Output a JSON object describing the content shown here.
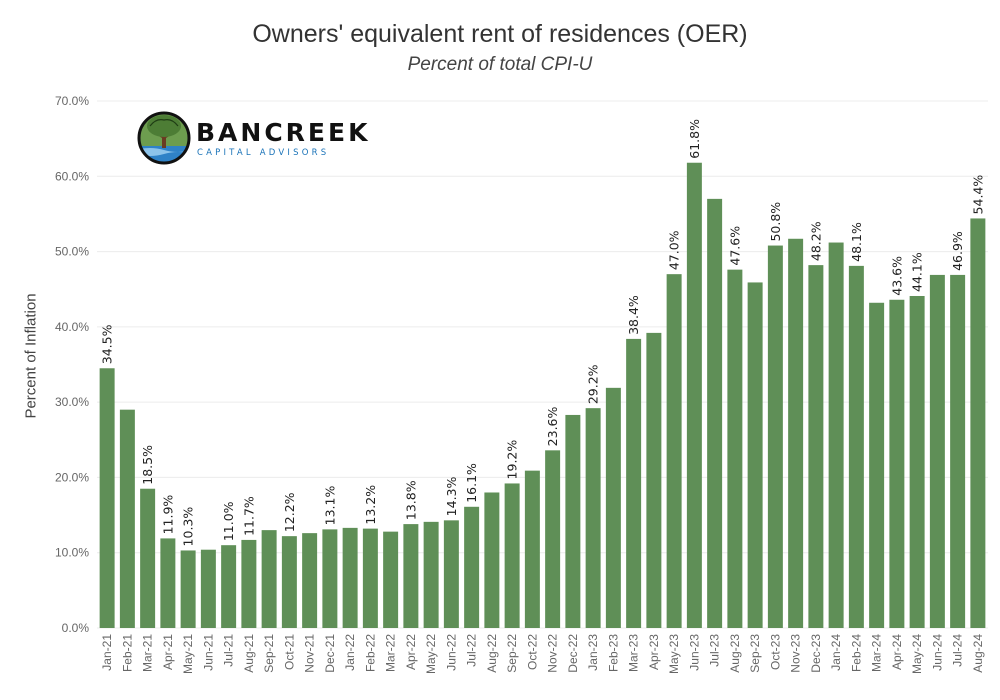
{
  "chart_data": {
    "type": "bar",
    "title": "Owners' equivalent rent of residences (OER)",
    "subtitle": "Percent of total CPI-U",
    "ylabel": "Percent of Inflation",
    "xlabel": "",
    "ylim": [
      0,
      70
    ],
    "yticks": [
      "0.0%",
      "10.0%",
      "20.0%",
      "30.0%",
      "40.0%",
      "50.0%",
      "60.0%",
      "70.0%"
    ],
    "grid": true,
    "bar_color": "#5f8f57",
    "categories": [
      "Jan-21",
      "Feb-21",
      "Mar-21",
      "Apr-21",
      "May-21",
      "Jun-21",
      "Jul-21",
      "Aug-21",
      "Sep-21",
      "Oct-21",
      "Nov-21",
      "Dec-21",
      "Jan-22",
      "Feb-22",
      "Mar-22",
      "Apr-22",
      "May-22",
      "Jun-22",
      "Jul-22",
      "Aug-22",
      "Sep-22",
      "Oct-22",
      "Nov-22",
      "Dec-22",
      "Jan-23",
      "Feb-23",
      "Mar-23",
      "Apr-23",
      "May-23",
      "Jun-23",
      "Jul-23",
      "Aug-23",
      "Sep-23",
      "Oct-23",
      "Nov-23",
      "Dec-23",
      "Jan-24",
      "Feb-24",
      "Mar-24",
      "Apr-24",
      "May-24",
      "Jun-24",
      "Jul-24",
      "Aug-24"
    ],
    "values": [
      34.5,
      29.0,
      18.5,
      11.9,
      10.3,
      10.4,
      11.0,
      11.7,
      13.0,
      12.2,
      12.6,
      13.1,
      13.3,
      13.2,
      12.8,
      13.8,
      14.1,
      14.3,
      16.1,
      18.0,
      19.2,
      20.9,
      23.6,
      28.3,
      29.2,
      31.9,
      38.4,
      39.2,
      47.0,
      61.8,
      57.0,
      47.6,
      45.9,
      50.8,
      51.7,
      48.2,
      51.2,
      48.1,
      43.2,
      43.6,
      44.1,
      46.9,
      46.9,
      54.4
    ],
    "data_labels": [
      "34.5%",
      null,
      "18.5%",
      "11.9%",
      "10.3%",
      null,
      "11.0%",
      "11.7%",
      null,
      "12.2%",
      null,
      "13.1%",
      null,
      "13.2%",
      null,
      "13.8%",
      null,
      "14.3%",
      "16.1%",
      null,
      "19.2%",
      null,
      "23.6%",
      null,
      "29.2%",
      null,
      "38.4%",
      null,
      "47.0%",
      "61.8%",
      null,
      "47.6%",
      null,
      "50.8%",
      null,
      "48.2%",
      null,
      "48.1%",
      null,
      "43.6%",
      "44.1%",
      null,
      "46.9%",
      "54.4%"
    ]
  },
  "logo": {
    "name": "BANCREEK",
    "tagline": "CAPITAL ADVISORS"
  }
}
